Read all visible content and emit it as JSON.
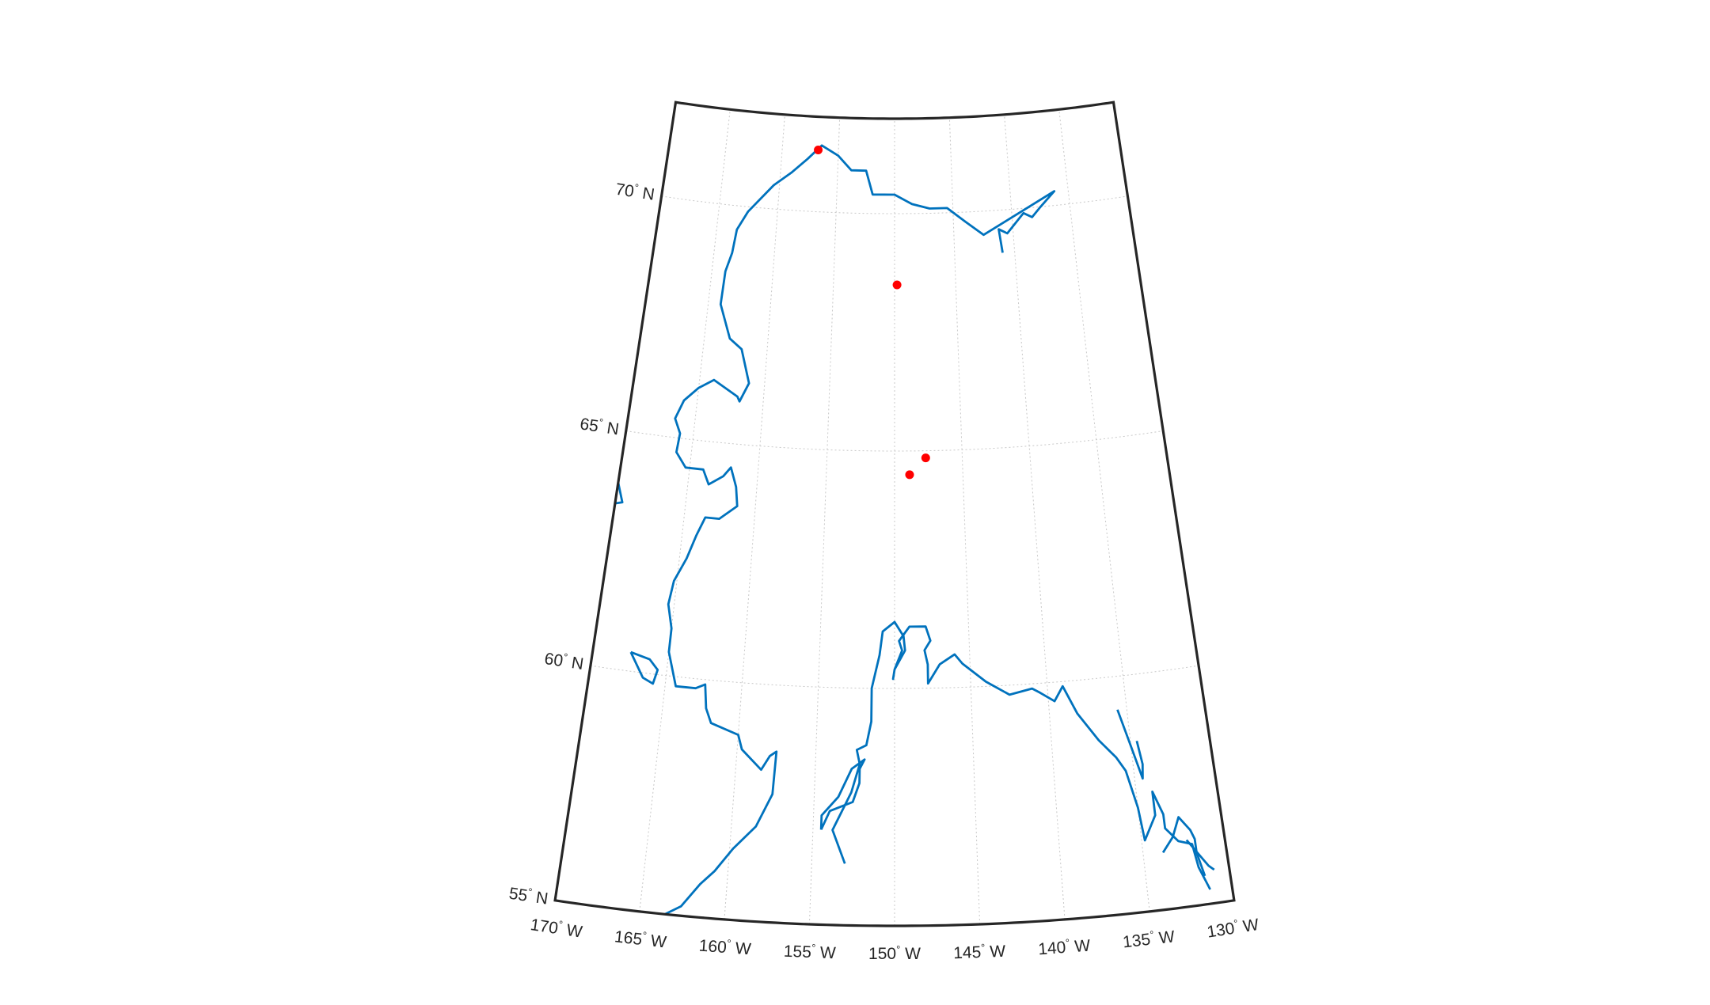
{
  "map": {
    "projection": "conic",
    "lat_range": [
      55,
      72
    ],
    "lon_range": [
      -170,
      -130
    ],
    "colors": {
      "frame": "#262626",
      "grid": "#c8c8c8",
      "coastline": "#0072bd",
      "marker": "#ff0000",
      "background": "#ffffff"
    },
    "lat_labels": [
      {
        "value": 55,
        "text": "55",
        "hemi": "N"
      },
      {
        "value": 60,
        "text": "60",
        "hemi": "N"
      },
      {
        "value": 65,
        "text": "65",
        "hemi": "N"
      },
      {
        "value": 70,
        "text": "70",
        "hemi": "N"
      }
    ],
    "lon_labels": [
      {
        "value": -170,
        "text": "170",
        "hemi": "W"
      },
      {
        "value": -165,
        "text": "165",
        "hemi": "W"
      },
      {
        "value": -160,
        "text": "160",
        "hemi": "W"
      },
      {
        "value": -155,
        "text": "155",
        "hemi": "W"
      },
      {
        "value": -150,
        "text": "150",
        "hemi": "W"
      },
      {
        "value": -145,
        "text": "145",
        "hemi": "W"
      },
      {
        "value": -140,
        "text": "140",
        "hemi": "W"
      },
      {
        "value": -135,
        "text": "135",
        "hemi": "W"
      },
      {
        "value": -130,
        "text": "130",
        "hemi": "W"
      }
    ],
    "points": [
      {
        "lat": 71.3,
        "lon": -156.8
      },
      {
        "lat": 68.5,
        "lon": -149.8
      },
      {
        "lat": 64.85,
        "lon": -147.7
      },
      {
        "lat": 64.5,
        "lon": -148.9
      }
    ],
    "coastlines": [
      {
        "name": "mainland",
        "coords": [
          [
            69.1,
            -141.0
          ],
          [
            69.6,
            -141.2
          ],
          [
            69.5,
            -140.5
          ],
          [
            69.9,
            -139.0
          ],
          [
            69.8,
            -138.3
          ],
          [
            70.0,
            -137.5
          ],
          [
            70.3,
            -136.2
          ],
          [
            69.5,
            -142.5
          ],
          [
            69.8,
            -144.0
          ],
          [
            70.1,
            -145.5
          ],
          [
            70.1,
            -147.0
          ],
          [
            70.2,
            -148.5
          ],
          [
            70.4,
            -150.0
          ],
          [
            70.4,
            -151.9
          ],
          [
            70.9,
            -152.5
          ],
          [
            70.9,
            -153.8
          ],
          [
            71.2,
            -155.0
          ],
          [
            71.4,
            -156.5
          ],
          [
            71.1,
            -157.7
          ],
          [
            70.8,
            -159.0
          ],
          [
            70.5,
            -160.5
          ],
          [
            69.9,
            -162.5
          ],
          [
            69.5,
            -163.3
          ],
          [
            69.0,
            -163.5
          ],
          [
            68.6,
            -163.9
          ],
          [
            67.9,
            -164.0
          ],
          [
            67.2,
            -163.0
          ],
          [
            67.0,
            -162.0
          ],
          [
            66.3,
            -161.2
          ],
          [
            65.9,
            -161.8
          ],
          [
            66.0,
            -162.0
          ],
          [
            66.3,
            -163.9
          ],
          [
            66.1,
            -165.0
          ],
          [
            65.8,
            -166.0
          ],
          [
            65.4,
            -166.5
          ],
          [
            65.1,
            -166.0
          ],
          [
            64.7,
            -166.1
          ],
          [
            64.4,
            -165.3
          ],
          [
            64.4,
            -164.0
          ],
          [
            64.1,
            -163.5
          ],
          [
            64.3,
            -162.5
          ],
          [
            64.5,
            -162.0
          ],
          [
            64.1,
            -161.5
          ],
          [
            63.7,
            -161.3
          ],
          [
            63.4,
            -162.5
          ],
          [
            63.4,
            -163.5
          ],
          [
            63.0,
            -164.0
          ],
          [
            62.5,
            -164.5
          ],
          [
            62.0,
            -165.2
          ],
          [
            61.5,
            -165.4
          ],
          [
            61.0,
            -165.0
          ],
          [
            60.5,
            -165.0
          ],
          [
            59.8,
            -164.3
          ],
          [
            59.8,
            -163.0
          ],
          [
            59.9,
            -162.4
          ],
          [
            59.4,
            -162.2
          ],
          [
            59.1,
            -161.8
          ],
          [
            58.9,
            -160.0
          ],
          [
            58.6,
            -159.7
          ],
          [
            58.2,
            -158.4
          ],
          [
            58.5,
            -157.9
          ],
          [
            58.6,
            -157.5
          ],
          [
            57.7,
            -157.6
          ],
          [
            57.0,
            -158.5
          ],
          [
            56.5,
            -159.8
          ],
          [
            56.0,
            -160.8
          ],
          [
            55.7,
            -161.6
          ],
          [
            55.2,
            -162.6
          ],
          [
            55.0,
            -163.5
          ],
          [
            54.7,
            -164.0
          ]
        ]
      },
      {
        "name": "gulf-east",
        "coords": [
          [
            56.3,
            -153.0
          ],
          [
            57.0,
            -153.8
          ],
          [
            57.8,
            -152.7
          ],
          [
            58.4,
            -152.2
          ],
          [
            58.7,
            -152.4
          ],
          [
            58.8,
            -151.8
          ],
          [
            59.3,
            -151.5
          ],
          [
            60.0,
            -151.5
          ],
          [
            60.7,
            -151.0
          ],
          [
            61.2,
            -150.8
          ],
          [
            61.4,
            -150.0
          ],
          [
            61.1,
            -149.4
          ],
          [
            60.8,
            -149.3
          ],
          [
            60.4,
            -150.0
          ],
          [
            60.2,
            -150.1
          ],
          [
            60.4,
            -150.0
          ],
          [
            60.8,
            -149.5
          ],
          [
            61.0,
            -149.7
          ],
          [
            61.3,
            -149.0
          ],
          [
            61.3,
            -147.9
          ],
          [
            61.0,
            -147.6
          ],
          [
            60.8,
            -148.0
          ],
          [
            60.5,
            -147.8
          ],
          [
            60.1,
            -147.8
          ],
          [
            60.5,
            -147.0
          ],
          [
            60.7,
            -146.0
          ],
          [
            60.5,
            -145.5
          ],
          [
            60.1,
            -144.0
          ],
          [
            59.8,
            -142.5
          ],
          [
            59.9,
            -141.0
          ],
          [
            59.8,
            -140.5
          ],
          [
            59.6,
            -139.6
          ],
          [
            59.9,
            -139.0
          ],
          [
            59.3,
            -138.2
          ],
          [
            58.7,
            -137.0
          ],
          [
            58.3,
            -136.0
          ],
          [
            58.0,
            -135.5
          ],
          [
            57.2,
            -135.0
          ],
          [
            56.5,
            -134.8
          ],
          [
            57.0,
            -134.0
          ],
          [
            57.5,
            -134.0
          ],
          [
            57.0,
            -133.5
          ],
          [
            56.7,
            -133.5
          ],
          [
            56.4,
            -132.8
          ],
          [
            56.3,
            -132.0
          ],
          [
            55.8,
            -131.8
          ],
          [
            55.3,
            -131.3
          ]
        ]
      },
      {
        "name": "kodiak-island",
        "coords": [
          [
            57.0,
            -154.5
          ],
          [
            57.4,
            -154.0
          ],
          [
            57.6,
            -152.6
          ],
          [
            58.0,
            -152.2
          ],
          [
            58.3,
            -152.2
          ],
          [
            58.5,
            -151.9
          ],
          [
            58.3,
            -152.7
          ],
          [
            57.7,
            -153.5
          ],
          [
            57.3,
            -154.5
          ],
          [
            57.0,
            -154.5
          ]
        ]
      },
      {
        "name": "inner-channel-1",
        "coords": [
          [
            59.3,
            -135.6
          ],
          [
            58.5,
            -135.0
          ],
          [
            57.8,
            -134.5
          ],
          [
            58.1,
            -134.4
          ],
          [
            58.6,
            -134.6
          ]
        ]
      },
      {
        "name": "inner-channel-2",
        "coords": [
          [
            56.2,
            -133.8
          ],
          [
            56.5,
            -133.1
          ],
          [
            56.9,
            -132.6
          ],
          [
            56.6,
            -132.0
          ],
          [
            56.4,
            -131.8
          ],
          [
            56.1,
            -131.8
          ],
          [
            55.6,
            -131.5
          ]
        ]
      },
      {
        "name": "inner-channel-3",
        "coords": [
          [
            56.4,
            -132.3
          ],
          [
            55.8,
            -131.2
          ],
          [
            55.7,
            -130.9
          ]
        ]
      },
      {
        "name": "st-lawrence-island",
        "coords": [
          [
            63.8,
            -171.5
          ],
          [
            63.9,
            -170.0
          ],
          [
            63.5,
            -169.5
          ],
          [
            63.4,
            -170.6
          ],
          [
            63.3,
            -171.5
          ]
        ]
      },
      {
        "name": "nunivak-island",
        "coords": [
          [
            60.4,
            -167.5
          ],
          [
            60.3,
            -166.2
          ],
          [
            60.1,
            -165.6
          ],
          [
            59.8,
            -165.8
          ],
          [
            59.9,
            -166.5
          ],
          [
            60.4,
            -167.5
          ]
        ]
      }
    ]
  }
}
